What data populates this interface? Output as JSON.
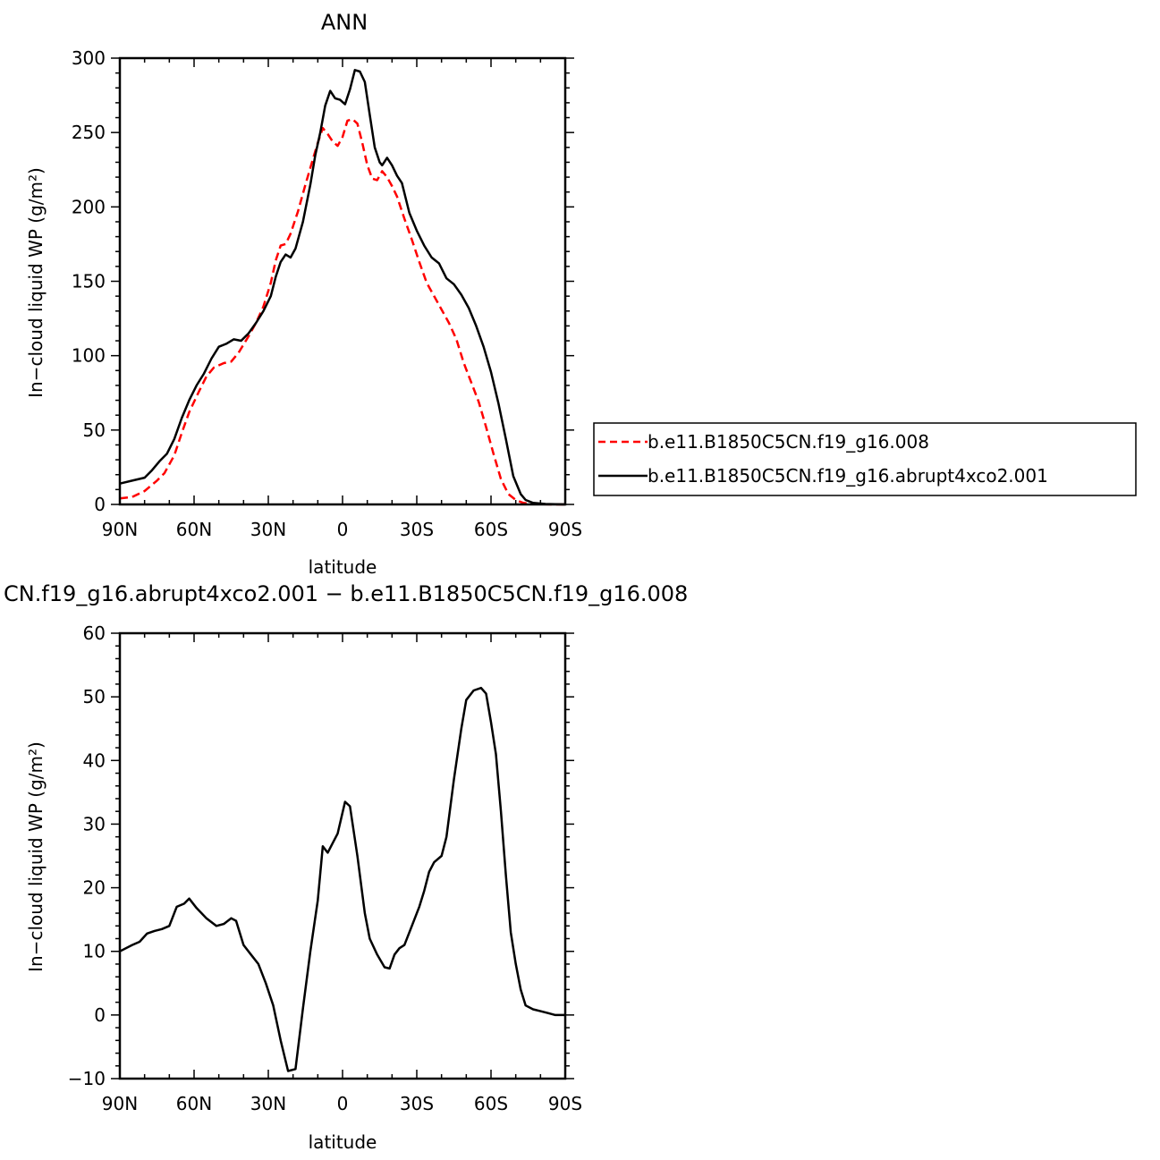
{
  "top": {
    "title": "ANN"
  },
  "bottom": {
    "title": "CN.f19_g16.abrupt4xco2.001 − b.e11.B1850C5CN.f19_g16.008"
  },
  "legend": {
    "items": [
      {
        "label": "b.e11.B1850C5CN.f19_g16.008",
        "color": "#ff0000",
        "dash": "dashed"
      },
      {
        "label": "b.e11.B1850C5CN.f19_g16.abrupt4xco2.001",
        "color": "#000000",
        "dash": "solid"
      }
    ]
  },
  "chart_data": [
    {
      "type": "line",
      "title": "ANN",
      "xlabel": "latitude",
      "ylabel": "In−cloud liquid WP (g/m²)",
      "xlim": [
        90,
        -90
      ],
      "ylim": [
        0,
        300
      ],
      "xticks": [
        {
          "value": 90,
          "label": "90N"
        },
        {
          "value": 60,
          "label": "60N"
        },
        {
          "value": 30,
          "label": "30N"
        },
        {
          "value": 0,
          "label": "0"
        },
        {
          "value": -30,
          "label": "30S"
        },
        {
          "value": -60,
          "label": "60S"
        },
        {
          "value": -90,
          "label": "90S"
        }
      ],
      "yticks": [
        0,
        50,
        100,
        150,
        200,
        250,
        300
      ],
      "legend_position": "right",
      "series": [
        {
          "name": "b.e11.B1850C5CN.f19_g16.008",
          "color": "#ff0000",
          "dash": "dashed",
          "points": [
            [
              90,
              4
            ],
            [
              85,
              5
            ],
            [
              80,
              9
            ],
            [
              75,
              16
            ],
            [
              72,
              21
            ],
            [
              68,
              33
            ],
            [
              65,
              48
            ],
            [
              62,
              62
            ],
            [
              58,
              76
            ],
            [
              55,
              86
            ],
            [
              52,
              92
            ],
            [
              48,
              95
            ],
            [
              45,
              96
            ],
            [
              42,
              102
            ],
            [
              38,
              113
            ],
            [
              35,
              122
            ],
            [
              32,
              133
            ],
            [
              29,
              149
            ],
            [
              27,
              164
            ],
            [
              25,
              174
            ],
            [
              23,
              175
            ],
            [
              21,
              182
            ],
            [
              18,
              197
            ],
            [
              15,
              215
            ],
            [
              12,
              232
            ],
            [
              10,
              243
            ],
            [
              8,
              253
            ],
            [
              6,
              249
            ],
            [
              4,
              244
            ],
            [
              2,
              241
            ],
            [
              0,
              247
            ],
            [
              -2,
              258
            ],
            [
              -4,
              259
            ],
            [
              -6,
              256
            ],
            [
              -8,
              243
            ],
            [
              -10,
              228
            ],
            [
              -12,
              219
            ],
            [
              -14,
              218
            ],
            [
              -16,
              224
            ],
            [
              -18,
              220
            ],
            [
              -20,
              214
            ],
            [
              -22,
              207
            ],
            [
              -25,
              192
            ],
            [
              -28,
              178
            ],
            [
              -31,
              163
            ],
            [
              -34,
              149
            ],
            [
              -37,
              140
            ],
            [
              -40,
              131
            ],
            [
              -43,
              122
            ],
            [
              -46,
              111
            ],
            [
              -49,
              95
            ],
            [
              -52,
              82
            ],
            [
              -55,
              69
            ],
            [
              -58,
              52
            ],
            [
              -61,
              34
            ],
            [
              -64,
              17
            ],
            [
              -67,
              7
            ],
            [
              -70,
              3
            ],
            [
              -73,
              1
            ],
            [
              -76,
              0.5
            ],
            [
              -80,
              0.2
            ],
            [
              -85,
              0
            ],
            [
              -90,
              0
            ]
          ]
        },
        {
          "name": "b.e11.B1850C5CN.f19_g16.abrupt4xco2.001",
          "color": "#000000",
          "dash": "solid",
          "points": [
            [
              90,
              14
            ],
            [
              85,
              16
            ],
            [
              80,
              18
            ],
            [
              77,
              23
            ],
            [
              74,
              29
            ],
            [
              71,
              34
            ],
            [
              68,
              44
            ],
            [
              65,
              58
            ],
            [
              62,
              70
            ],
            [
              59,
              80
            ],
            [
              56,
              88
            ],
            [
              53,
              98
            ],
            [
              50,
              106
            ],
            [
              47,
              108
            ],
            [
              44,
              111
            ],
            [
              41,
              110
            ],
            [
              38,
              115
            ],
            [
              35,
              122
            ],
            [
              32,
              130
            ],
            [
              29,
              140
            ],
            [
              27,
              153
            ],
            [
              25,
              163
            ],
            [
              23,
              168
            ],
            [
              21,
              166
            ],
            [
              19,
              172
            ],
            [
              16,
              190
            ],
            [
              13,
              215
            ],
            [
              11,
              235
            ],
            [
              9,
              250
            ],
            [
              7,
              268
            ],
            [
              5,
              278
            ],
            [
              3,
              273
            ],
            [
              1,
              272
            ],
            [
              -1,
              269
            ],
            [
              -3,
              279
            ],
            [
              -5,
              292
            ],
            [
              -7,
              291
            ],
            [
              -9,
              284
            ],
            [
              -11,
              262
            ],
            [
              -13,
              240
            ],
            [
              -15,
              230
            ],
            [
              -16,
              228
            ],
            [
              -18,
              233
            ],
            [
              -20,
              228
            ],
            [
              -22,
              221
            ],
            [
              -24,
              216
            ],
            [
              -27,
              196
            ],
            [
              -30,
              184
            ],
            [
              -33,
              174
            ],
            [
              -36,
              166
            ],
            [
              -39,
              162
            ],
            [
              -42,
              152
            ],
            [
              -45,
              148
            ],
            [
              -48,
              141
            ],
            [
              -51,
              132
            ],
            [
              -54,
              120
            ],
            [
              -57,
              106
            ],
            [
              -60,
              89
            ],
            [
              -63,
              68
            ],
            [
              -66,
              44
            ],
            [
              -69,
              19
            ],
            [
              -72,
              7
            ],
            [
              -74,
              3
            ],
            [
              -77,
              1
            ],
            [
              -82,
              0.3
            ],
            [
              -90,
              0
            ]
          ]
        }
      ]
    },
    {
      "type": "line",
      "title": "CN.f19_g16.abrupt4xco2.001 − b.e11.B1850C5CN.f19_g16.008",
      "xlabel": "latitude",
      "ylabel": "In−cloud liquid WP (g/m²)",
      "xlim": [
        90,
        -90
      ],
      "ylim": [
        -10,
        60
      ],
      "xticks": [
        {
          "value": 90,
          "label": "90N"
        },
        {
          "value": 60,
          "label": "60N"
        },
        {
          "value": 30,
          "label": "30N"
        },
        {
          "value": 0,
          "label": "0"
        },
        {
          "value": -30,
          "label": "30S"
        },
        {
          "value": -60,
          "label": "60S"
        },
        {
          "value": -90,
          "label": "90S"
        }
      ],
      "yticks": [
        -10,
        0,
        10,
        20,
        30,
        40,
        50,
        60
      ],
      "series": [
        {
          "color": "#000000",
          "dash": "solid",
          "points": [
            [
              90,
              10
            ],
            [
              85,
              11
            ],
            [
              82,
              11.5
            ],
            [
              79,
              12.8
            ],
            [
              76,
              13.2
            ],
            [
              73,
              13.5
            ],
            [
              70,
              14
            ],
            [
              67,
              17
            ],
            [
              64,
              17.5
            ],
            [
              62,
              18.3
            ],
            [
              59,
              16.8
            ],
            [
              55,
              15.2
            ],
            [
              51,
              14
            ],
            [
              48,
              14.3
            ],
            [
              45,
              15.2
            ],
            [
              43,
              14.8
            ],
            [
              40,
              11
            ],
            [
              37,
              9.5
            ],
            [
              34,
              8
            ],
            [
              31,
              5
            ],
            [
              28,
              1.5
            ],
            [
              25,
              -4
            ],
            [
              22,
              -8.8
            ],
            [
              19,
              -8.5
            ],
            [
              16,
              1
            ],
            [
              13,
              10
            ],
            [
              10,
              18
            ],
            [
              8,
              26.5
            ],
            [
              6,
              25.5
            ],
            [
              4,
              27
            ],
            [
              2,
              28.5
            ],
            [
              -1,
              33.5
            ],
            [
              -3,
              32.8
            ],
            [
              -6,
              25
            ],
            [
              -9,
              16
            ],
            [
              -11,
              12
            ],
            [
              -14,
              9.5
            ],
            [
              -17,
              7.5
            ],
            [
              -19,
              7.3
            ],
            [
              -21,
              9.5
            ],
            [
              -23,
              10.5
            ],
            [
              -25,
              11
            ],
            [
              -28,
              14
            ],
            [
              -31,
              17
            ],
            [
              -33,
              19.5
            ],
            [
              -35,
              22.5
            ],
            [
              -37,
              24
            ],
            [
              -40,
              25
            ],
            [
              -42,
              28
            ],
            [
              -45,
              37
            ],
            [
              -48,
              45
            ],
            [
              -50,
              49.5
            ],
            [
              -53,
              51
            ],
            [
              -56,
              51.4
            ],
            [
              -58,
              50.5
            ],
            [
              -60,
              46
            ],
            [
              -62,
              41
            ],
            [
              -64,
              32
            ],
            [
              -66,
              22
            ],
            [
              -68,
              13
            ],
            [
              -70,
              8
            ],
            [
              -72,
              4
            ],
            [
              -74,
              1.5
            ],
            [
              -77,
              0.9
            ],
            [
              -80,
              0.6
            ],
            [
              -83,
              0.3
            ],
            [
              -86,
              0
            ],
            [
              -90,
              0
            ]
          ]
        }
      ]
    }
  ]
}
